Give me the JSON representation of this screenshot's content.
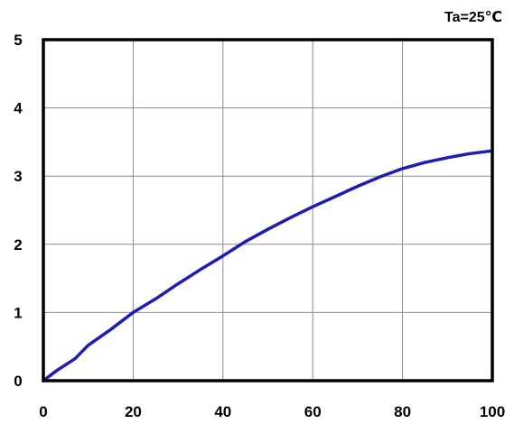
{
  "annotation": "Ta=25℃",
  "colors": {
    "series": "#1a1acc",
    "grid": "#8c8c8c",
    "frame": "#000000"
  },
  "chart_data": {
    "type": "line",
    "title": "",
    "xlabel": "",
    "ylabel": "",
    "xlim": [
      0,
      100
    ],
    "ylim": [
      0,
      5
    ],
    "xticks": [
      0,
      20,
      40,
      60,
      80,
      100
    ],
    "yticks": [
      0,
      1,
      2,
      3,
      4,
      5
    ],
    "xtick_labels": [
      "0",
      "20",
      "40",
      "60",
      "80",
      "100"
    ],
    "ytick_labels": [
      "0",
      "1",
      "2",
      "3",
      "4",
      "5"
    ],
    "grid": true,
    "legend": "none",
    "series": [
      {
        "x": [
          0,
          3,
          7,
          10,
          15,
          20,
          25,
          30,
          35,
          40,
          45,
          50,
          55,
          60,
          65,
          70,
          75,
          80,
          85,
          90,
          95,
          100
        ],
        "y": [
          0,
          0.15,
          0.32,
          0.52,
          0.75,
          1.0,
          1.2,
          1.42,
          1.63,
          1.83,
          2.04,
          2.22,
          2.39,
          2.55,
          2.7,
          2.85,
          2.99,
          3.11,
          3.2,
          3.27,
          3.33,
          3.37
        ]
      }
    ]
  }
}
